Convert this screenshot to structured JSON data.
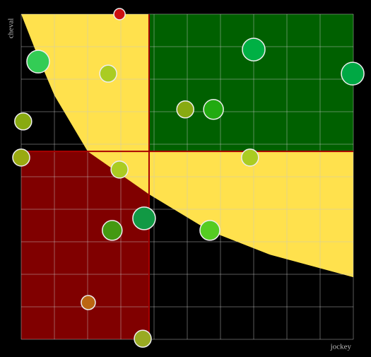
{
  "chart_data": {
    "type": "scatter",
    "xlabel": "jockey",
    "ylabel": "cheval",
    "xlim": [
      0,
      10
    ],
    "ylim": [
      0,
      10
    ],
    "xticks": [
      0,
      1,
      2,
      3,
      4,
      5,
      6,
      7,
      8,
      9,
      10
    ],
    "yticks": [
      0,
      1,
      2,
      3,
      4,
      5,
      6,
      7,
      8,
      9,
      10
    ],
    "grid": true,
    "quadrant_x": 3.85,
    "quadrant_y": 5.78,
    "quadrant_colors": {
      "low": "#800000",
      "high": "#006000",
      "border": "#aa0000"
    },
    "curve": {
      "color": "#ffe14d",
      "x": [
        0,
        0.5,
        1,
        2,
        3.85,
        5.68,
        7.5,
        10
      ],
      "y": [
        10,
        8.7,
        7.5,
        5.78,
        4.46,
        3.33,
        2.6,
        1.91
      ]
    },
    "series": [
      {
        "x": [
          2.96,
          0.51,
          2.62,
          7.0,
          9.98,
          4.94,
          5.79,
          0.06,
          0,
          2.96,
          6.89,
          3.7,
          2.74,
          5.68,
          2.02,
          3.66
        ],
        "values": [
          10,
          8.54,
          8.17,
          8.91,
          8.17,
          7.07,
          7.07,
          6.7,
          5.59,
          5.22,
          5.59,
          3.72,
          3.35,
          3.35,
          1.13,
          0.02
        ],
        "sizes": [
          8,
          16,
          12,
          16,
          16,
          12,
          14,
          12,
          12,
          12,
          12,
          16,
          14,
          14,
          10,
          12
        ],
        "colors": [
          "#cc1111",
          "#33cc55",
          "#aacc22",
          "#00b044",
          "#00a844",
          "#88aa11",
          "#22aa11",
          "#88aa11",
          "#99aa11",
          "#aacc22",
          "#aacc22",
          "#119944",
          "#449911",
          "#55cc22",
          "#bb6611",
          "#99aa22"
        ]
      }
    ]
  }
}
